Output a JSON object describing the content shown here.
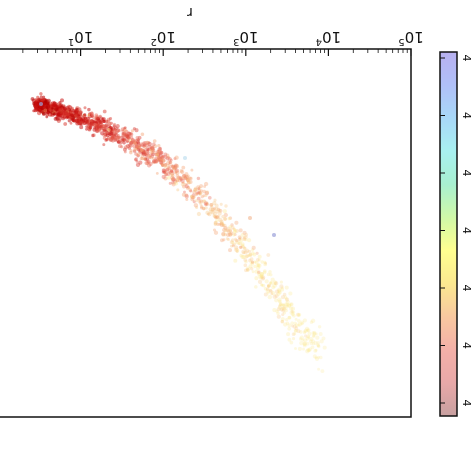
{
  "chart_data": {
    "type": "scatter",
    "orientation": "rotated-180",
    "x_scale": "log",
    "xlim": [
      1,
      100000
    ],
    "x_tick_values": [
      10,
      100,
      1000,
      10000,
      100000
    ],
    "x_tick_labels": [
      {
        "base": "10",
        "exp": "1"
      },
      {
        "base": "10",
        "exp": "2"
      },
      {
        "base": "10",
        "exp": "3"
      },
      {
        "base": "10",
        "exp": "4"
      },
      {
        "base": "10",
        "exp": "5"
      }
    ],
    "x_label": "r",
    "colormap": [
      "#c8a0a0",
      "#e8a8a8",
      "#f4b0a8",
      "#f8c8a0",
      "#fbe890",
      "#ffff90",
      "#d0f8a8",
      "#a8f0d0",
      "#a8f0f0",
      "#a8d8f8",
      "#b0c0f8",
      "#b8b0f0"
    ],
    "colorbar_ticks": [
      "4",
      "4",
      "4",
      "4",
      "4",
      "4",
      "4"
    ],
    "curve": [
      {
        "r": 3,
        "v": 0.0
      },
      {
        "r": 10,
        "v": 0.05
      },
      {
        "r": 30,
        "v": 0.12
      },
      {
        "r": 100,
        "v": 0.22
      },
      {
        "r": 300,
        "v": 0.36
      },
      {
        "r": 1000,
        "v": 0.56
      },
      {
        "r": 3000,
        "v": 0.78
      },
      {
        "r": 6000,
        "v": 0.92
      }
    ],
    "n_points": 1400,
    "grid": false,
    "legend": "none"
  }
}
